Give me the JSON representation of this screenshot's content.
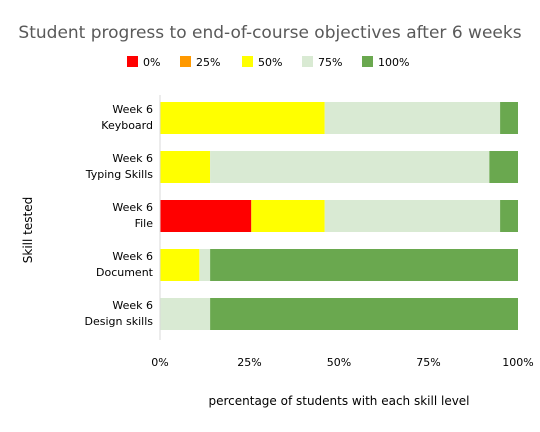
{
  "chart_data": {
    "type": "bar",
    "orientation": "horizontal",
    "stacked": true,
    "title": "Student progress to end-of-course objectives after 6 weeks",
    "xlabel": "percentage of students with each skill level",
    "ylabel": "Skill tested",
    "xlim": [
      0,
      100
    ],
    "x_ticks": [
      "0%",
      "25%",
      "50%",
      "75%",
      "100%"
    ],
    "x_tick_values": [
      0,
      25,
      50,
      75,
      100
    ],
    "legend_position": "top",
    "categories": [
      [
        "Week 6",
        "Keyboard"
      ],
      [
        "Week 6",
        "Typing Skills"
      ],
      [
        "Week 6",
        "File"
      ],
      [
        "Week 6",
        "Document"
      ],
      [
        "Week 6",
        "Design skills"
      ]
    ],
    "series": [
      {
        "name": "0%",
        "color": "#ff0000",
        "values": [
          0,
          0,
          25.5,
          0,
          0
        ]
      },
      {
        "name": "25%",
        "color": "#ff9900",
        "values": [
          0,
          0,
          0,
          0,
          0
        ]
      },
      {
        "name": "50%",
        "color": "#ffff00",
        "values": [
          46,
          14,
          20.5,
          11,
          0
        ]
      },
      {
        "name": "75%",
        "color": "#d9ead3",
        "values": [
          49,
          78,
          49,
          3,
          14
        ]
      },
      {
        "name": "100%",
        "color": "#6aa84f",
        "values": [
          5,
          8,
          5,
          86,
          86
        ]
      }
    ]
  }
}
